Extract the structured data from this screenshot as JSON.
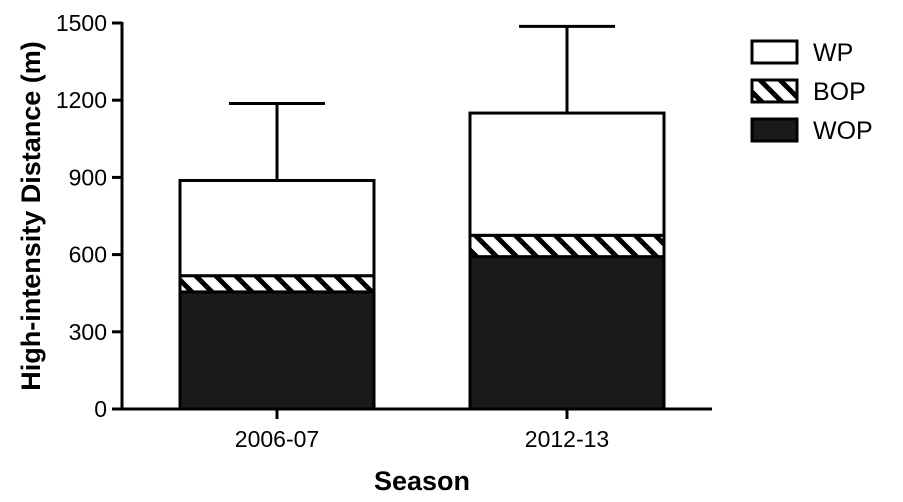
{
  "chart_data": {
    "type": "bar",
    "stacked": true,
    "categories": [
      "2006-07",
      "2012-13"
    ],
    "series": [
      {
        "name": "WOP",
        "values": [
          455,
          592
        ],
        "pattern": "solid"
      },
      {
        "name": "BOP",
        "values": [
          63,
          83
        ],
        "pattern": "hatched"
      },
      {
        "name": "WP",
        "values": [
          370,
          475
        ],
        "pattern": "open"
      }
    ],
    "error_bars_upper": [
      1187,
      1487
    ],
    "totals": [
      888,
      1150
    ],
    "xlabel": "Season",
    "ylabel": "High-intensity Distance (m)",
    "ylim": [
      0,
      1500
    ],
    "yticks": [
      "0",
      "300",
      "600",
      "900",
      "1200",
      "1500"
    ],
    "legend_order": [
      "WP",
      "BOP",
      "WOP"
    ],
    "legend_position": "top-right",
    "grid": false,
    "colors": {
      "ink": "#000000",
      "wop": "#1a1a1a",
      "paper": "#ffffff"
    }
  }
}
